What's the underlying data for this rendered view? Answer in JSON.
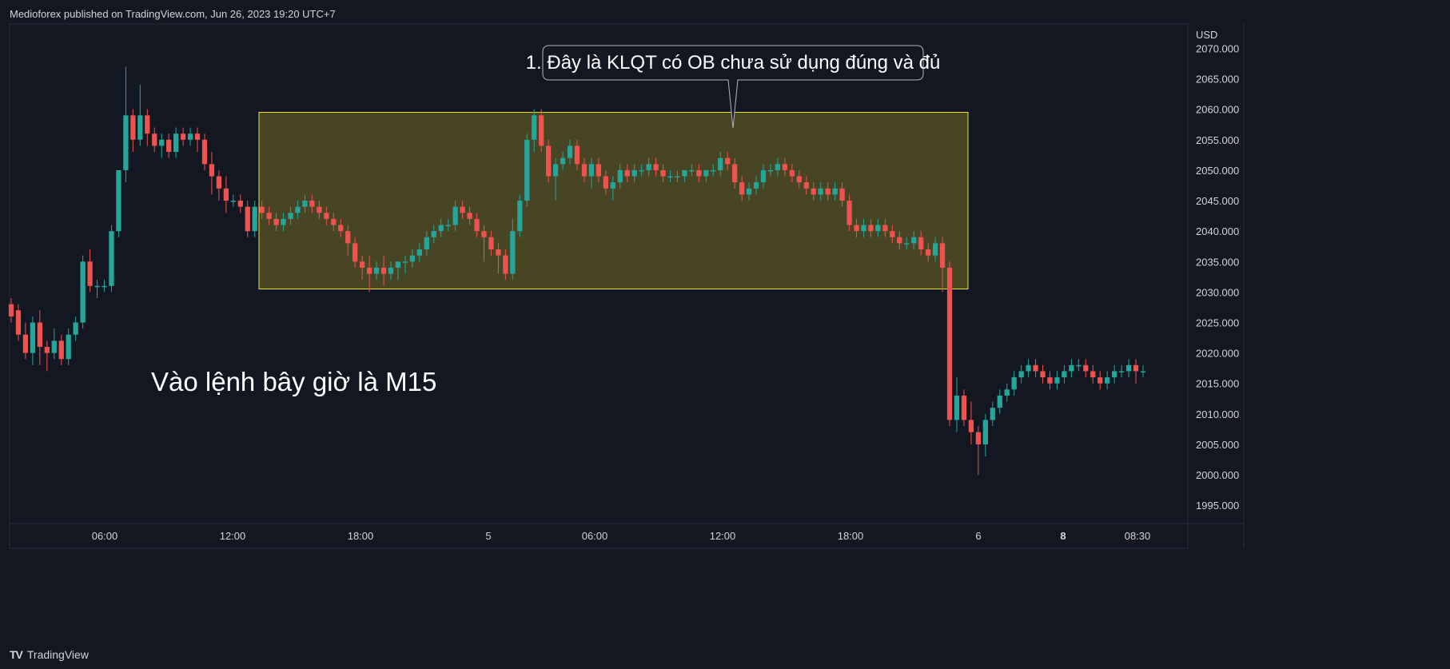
{
  "header": {
    "text": "Medioforex published on TradingView.com, Jun 26, 2023 19:20 UTC+7"
  },
  "footer": {
    "brand": "TradingView",
    "logo": "TV"
  },
  "colors": {
    "bg": "#131722",
    "up": "#26a69a",
    "down": "#ef5350",
    "box_stroke": "#f2e33a",
    "box_fill": "#5a5525",
    "grid": "#2a2e39",
    "text": "#d1d4dc"
  },
  "annotations": {
    "callout": "1. Đây là KLQT có OB chưa sử dụng đúng và đủ",
    "note": "Vào lệnh bây giờ là M15"
  },
  "chart_data": {
    "type": "candlestick",
    "currency": "USD",
    "ylim": [
      1992,
      2074
    ],
    "yticks": [
      "2070.000",
      "2065.000",
      "2060.000",
      "2055.000",
      "2050.000",
      "2045.000",
      "2040.000",
      "2035.000",
      "2030.000",
      "2025.000",
      "2020.000",
      "2015.000",
      "2010.000",
      "2005.000",
      "2000.000",
      "1995.000"
    ],
    "xticks": [
      "06:00",
      "12:00",
      "18:00",
      "5",
      "06:00",
      "12:00",
      "18:00",
      "6",
      "8",
      "08:30"
    ],
    "bold_xticks": [
      "8"
    ],
    "zone": {
      "from": 2030.5,
      "to": 2059.5
    },
    "ohlc": [
      [
        2028,
        2029,
        2025,
        2026
      ],
      [
        2027,
        2028,
        2022,
        2023
      ],
      [
        2023,
        2025,
        2019,
        2020
      ],
      [
        2020,
        2026,
        2018,
        2025
      ],
      [
        2025,
        2027,
        2018,
        2021
      ],
      [
        2021,
        2022,
        2017,
        2020
      ],
      [
        2020,
        2024,
        2019,
        2022
      ],
      [
        2022,
        2023,
        2018,
        2019
      ],
      [
        2019,
        2024,
        2018,
        2023
      ],
      [
        2023,
        2026,
        2022,
        2025
      ],
      [
        2025,
        2036,
        2024,
        2035
      ],
      [
        2035,
        2037,
        2030,
        2031
      ],
      [
        2031,
        2032,
        2029,
        2031
      ],
      [
        2031,
        2032,
        2030,
        2031
      ],
      [
        2031,
        2041,
        2030,
        2040
      ],
      [
        2040,
        2050,
        2039,
        2050
      ],
      [
        2050,
        2067,
        2048,
        2059
      ],
      [
        2059,
        2060,
        2053,
        2055
      ],
      [
        2055,
        2064,
        2054,
        2059
      ],
      [
        2059,
        2060,
        2054,
        2056
      ],
      [
        2056,
        2057,
        2053,
        2054
      ],
      [
        2054,
        2056,
        2052,
        2055
      ],
      [
        2055,
        2056,
        2052,
        2053
      ],
      [
        2053,
        2057,
        2052,
        2056
      ],
      [
        2056,
        2057,
        2054,
        2055
      ],
      [
        2055,
        2057,
        2054,
        2056
      ],
      [
        2056,
        2057,
        2053,
        2055
      ],
      [
        2055,
        2056,
        2050,
        2051
      ],
      [
        2051,
        2053,
        2046,
        2049
      ],
      [
        2049,
        2050,
        2045,
        2047
      ],
      [
        2047,
        2049,
        2043,
        2045
      ],
      [
        2045,
        2046,
        2044,
        2045
      ],
      [
        2045,
        2046,
        2043,
        2044
      ],
      [
        2044,
        2045,
        2039,
        2040
      ],
      [
        2040,
        2045,
        2039,
        2044
      ],
      [
        2044,
        2045,
        2042,
        2043
      ],
      [
        2043,
        2044,
        2041,
        2042
      ],
      [
        2042,
        2043,
        2040,
        2041
      ],
      [
        2041,
        2043,
        2040,
        2042
      ],
      [
        2042,
        2044,
        2041,
        2043
      ],
      [
        2043,
        2045,
        2042,
        2044
      ],
      [
        2044,
        2046,
        2043,
        2045
      ],
      [
        2045,
        2046,
        2043,
        2044
      ],
      [
        2044,
        2045,
        2042,
        2043
      ],
      [
        2043,
        2044,
        2041,
        2042
      ],
      [
        2042,
        2043,
        2040,
        2041
      ],
      [
        2041,
        2042,
        2039,
        2040
      ],
      [
        2040,
        2041,
        2036,
        2038
      ],
      [
        2038,
        2039,
        2034,
        2035
      ],
      [
        2035,
        2036,
        2032,
        2034
      ],
      [
        2034,
        2036,
        2030,
        2033
      ],
      [
        2033,
        2035,
        2032,
        2034
      ],
      [
        2034,
        2036,
        2031,
        2033
      ],
      [
        2033,
        2035,
        2032,
        2034
      ],
      [
        2034,
        2035,
        2032,
        2035
      ],
      [
        2035,
        2036,
        2033,
        2035
      ],
      [
        2035,
        2037,
        2034,
        2036
      ],
      [
        2036,
        2038,
        2035,
        2037
      ],
      [
        2037,
        2040,
        2036,
        2039
      ],
      [
        2039,
        2041,
        2038,
        2040
      ],
      [
        2040,
        2042,
        2039,
        2041
      ],
      [
        2041,
        2042,
        2040,
        2041
      ],
      [
        2041,
        2045,
        2040,
        2044
      ],
      [
        2044,
        2045,
        2042,
        2043
      ],
      [
        2043,
        2044,
        2041,
        2042
      ],
      [
        2042,
        2043,
        2039,
        2040
      ],
      [
        2040,
        2041,
        2035,
        2039
      ],
      [
        2039,
        2040,
        2036,
        2037
      ],
      [
        2037,
        2038,
        2033,
        2036
      ],
      [
        2036,
        2037,
        2032,
        2033
      ],
      [
        2033,
        2042,
        2032,
        2040
      ],
      [
        2040,
        2046,
        2039,
        2045
      ],
      [
        2045,
        2056,
        2044,
        2055
      ],
      [
        2055,
        2060,
        2053,
        2059
      ],
      [
        2059,
        2060,
        2053,
        2054
      ],
      [
        2054,
        2055,
        2048,
        2049
      ],
      [
        2049,
        2052,
        2045,
        2051
      ],
      [
        2051,
        2053,
        2050,
        2052
      ],
      [
        2052,
        2055,
        2051,
        2054
      ],
      [
        2054,
        2055,
        2050,
        2051
      ],
      [
        2051,
        2052,
        2048,
        2049
      ],
      [
        2049,
        2052,
        2047,
        2051
      ],
      [
        2051,
        2052,
        2048,
        2049
      ],
      [
        2049,
        2050,
        2046,
        2047
      ],
      [
        2047,
        2049,
        2045,
        2048
      ],
      [
        2048,
        2051,
        2047,
        2050
      ],
      [
        2050,
        2051,
        2048,
        2049
      ],
      [
        2049,
        2051,
        2048,
        2050
      ],
      [
        2050,
        2051,
        2049,
        2050
      ],
      [
        2050,
        2052,
        2049,
        2051
      ],
      [
        2051,
        2052,
        2049,
        2050
      ],
      [
        2050,
        2051,
        2048,
        2049
      ],
      [
        2049,
        2050,
        2048,
        2049
      ],
      [
        2049,
        2050,
        2048,
        2049
      ],
      [
        2049,
        2050,
        2048,
        2050
      ],
      [
        2050,
        2051,
        2049,
        2050
      ],
      [
        2050,
        2051,
        2048,
        2049
      ],
      [
        2049,
        2050,
        2048,
        2050
      ],
      [
        2050,
        2051,
        2049,
        2050
      ],
      [
        2050,
        2053,
        2049,
        2052
      ],
      [
        2052,
        2053,
        2050,
        2051
      ],
      [
        2051,
        2052,
        2047,
        2048
      ],
      [
        2048,
        2049,
        2045,
        2046
      ],
      [
        2046,
        2048,
        2045,
        2047
      ],
      [
        2047,
        2049,
        2046,
        2048
      ],
      [
        2048,
        2051,
        2047,
        2050
      ],
      [
        2050,
        2051,
        2049,
        2050
      ],
      [
        2050,
        2052,
        2049,
        2051
      ],
      [
        2051,
        2052,
        2049,
        2050
      ],
      [
        2050,
        2051,
        2048,
        2049
      ],
      [
        2049,
        2050,
        2047,
        2048
      ],
      [
        2048,
        2049,
        2046,
        2047
      ],
      [
        2047,
        2048,
        2045,
        2046
      ],
      [
        2046,
        2048,
        2045,
        2047
      ],
      [
        2047,
        2048,
        2045,
        2046
      ],
      [
        2046,
        2048,
        2045,
        2047
      ],
      [
        2047,
        2048,
        2044,
        2045
      ],
      [
        2045,
        2046,
        2040,
        2041
      ],
      [
        2041,
        2042,
        2039,
        2040
      ],
      [
        2040,
        2042,
        2039,
        2041
      ],
      [
        2041,
        2042,
        2039,
        2040
      ],
      [
        2040,
        2042,
        2039,
        2041
      ],
      [
        2041,
        2042,
        2039,
        2040
      ],
      [
        2040,
        2041,
        2038,
        2039
      ],
      [
        2039,
        2040,
        2037,
        2038
      ],
      [
        2038,
        2039,
        2037,
        2038
      ],
      [
        2038,
        2040,
        2037,
        2039
      ],
      [
        2039,
        2040,
        2036,
        2037
      ],
      [
        2037,
        2038,
        2035,
        2036
      ],
      [
        2036,
        2039,
        2035,
        2038
      ],
      [
        2038,
        2039,
        2030,
        2034
      ],
      [
        2034,
        2035,
        2008,
        2009
      ],
      [
        2009,
        2016,
        2007,
        2013
      ],
      [
        2013,
        2014,
        2008,
        2009
      ],
      [
        2009,
        2012,
        2005,
        2007
      ],
      [
        2007,
        2008,
        2000,
        2005
      ],
      [
        2005,
        2010,
        2003,
        2009
      ],
      [
        2009,
        2012,
        2008,
        2011
      ],
      [
        2011,
        2014,
        2010,
        2013
      ],
      [
        2013,
        2015,
        2012,
        2014
      ],
      [
        2014,
        2017,
        2013,
        2016
      ],
      [
        2016,
        2018,
        2015,
        2017
      ],
      [
        2017,
        2019,
        2016,
        2018
      ],
      [
        2018,
        2019,
        2016,
        2017
      ],
      [
        2017,
        2018,
        2015,
        2016
      ],
      [
        2016,
        2017,
        2014,
        2015
      ],
      [
        2015,
        2017,
        2014,
        2016
      ],
      [
        2016,
        2018,
        2015,
        2017
      ],
      [
        2017,
        2019,
        2016,
        2018
      ],
      [
        2018,
        2019,
        2017,
        2018
      ],
      [
        2018,
        2019,
        2016,
        2017
      ],
      [
        2017,
        2018,
        2015,
        2016
      ],
      [
        2016,
        2017,
        2014,
        2015
      ],
      [
        2015,
        2017,
        2014,
        2016
      ],
      [
        2016,
        2018,
        2015,
        2017
      ],
      [
        2017,
        2018,
        2016,
        2017
      ],
      [
        2017,
        2019,
        2016,
        2018
      ],
      [
        2018,
        2019,
        2015,
        2017
      ],
      [
        2017,
        2018,
        2016,
        2017
      ]
    ]
  }
}
